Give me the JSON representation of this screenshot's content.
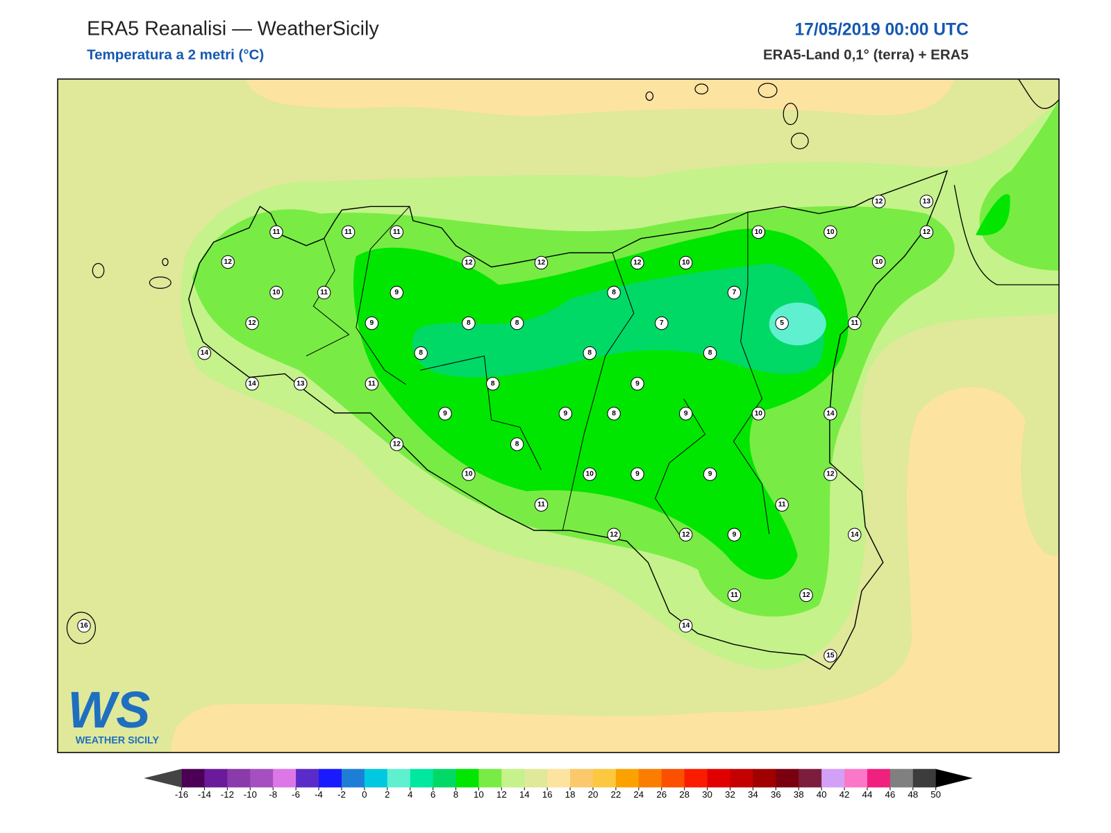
{
  "header": {
    "title": "ERA5 Reanalisi — WeatherSicily",
    "subtitle": "Temperatura a 2 metri (°C)",
    "datetime": "17/05/2019 00:00 UTC",
    "source": "ERA5-Land 0,1° (terra) + ERA5"
  },
  "stations": [
    11,
    11,
    11,
    12,
    10,
    11,
    9,
    12,
    9,
    14,
    14,
    13,
    11,
    12,
    12,
    12,
    10,
    10,
    10,
    12,
    13,
    12,
    10,
    8,
    7,
    7,
    5,
    11,
    8,
    8,
    8,
    8,
    8,
    8,
    9,
    9,
    9,
    8,
    9,
    10,
    14,
    12,
    8,
    10,
    10,
    9,
    9,
    12,
    11,
    11,
    12,
    12,
    9,
    14,
    11,
    12,
    14,
    15,
    16
  ],
  "colorbar": {
    "ticks": [
      -16,
      -14,
      -12,
      -10,
      -8,
      -6,
      -4,
      -2,
      0,
      2,
      4,
      6,
      8,
      10,
      12,
      14,
      16,
      18,
      20,
      22,
      24,
      26,
      28,
      30,
      32,
      34,
      36,
      38,
      40,
      42,
      44,
      46,
      48,
      50
    ],
    "colors": [
      "#4b0055",
      "#6b1a9b",
      "#8a3aab",
      "#a64fc0",
      "#dd77e8",
      "#5a2bc8",
      "#1a1aff",
      "#1e7ed6",
      "#00c8e0",
      "#5ff0d0",
      "#00e8a0",
      "#00d966",
      "#00e600",
      "#78ec44",
      "#c5f28a",
      "#e0e89a",
      "#fde3a0",
      "#fbc96b",
      "#fbc840",
      "#fba200",
      "#fb7d00",
      "#fb5000",
      "#fb1c00",
      "#e00000",
      "#c40000",
      "#a00000",
      "#7a0010",
      "#7d1d3e",
      "#d3a0f8",
      "#fb78c8",
      "#f0207f",
      "#808080",
      "#3c3c3c"
    ]
  },
  "logo": {
    "mark": "WS",
    "text": "WEATHER SICILY"
  }
}
